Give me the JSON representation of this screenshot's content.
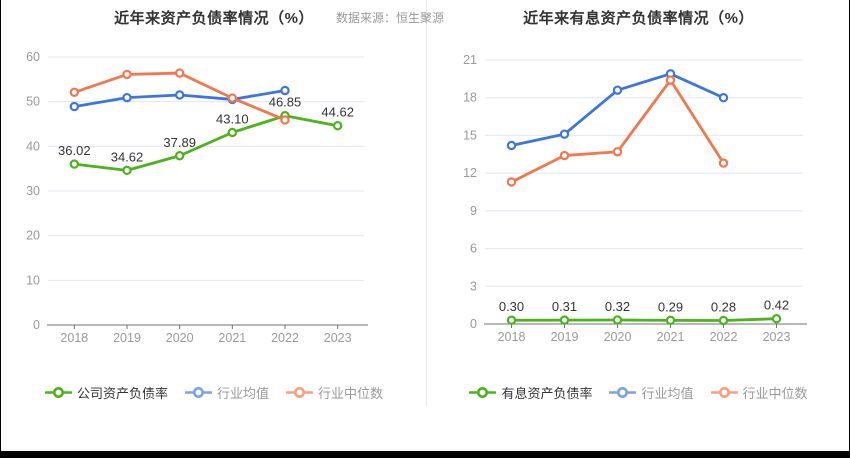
{
  "source_label": "数据来源：恒生聚源",
  "colors": {
    "green": "#4cb31b",
    "blue": "#3c76dd",
    "orange": "#f4764e",
    "legend_blue": "#7aa2e9",
    "legend_orange": "#f9a080",
    "grid": "#e1e7f2",
    "axis": "#6e7079",
    "tick_label": "#999999",
    "data_label": "#333333"
  },
  "chart_data": [
    {
      "type": "line",
      "title": "近年来资产负债率情况（%）",
      "categories": [
        "2018",
        "2019",
        "2020",
        "2021",
        "2022",
        "2023"
      ],
      "ylim": [
        0,
        60
      ],
      "y_ticks": [
        0,
        10,
        20,
        30,
        40,
        50,
        60
      ],
      "grid": true,
      "legend_position": "bottom",
      "series": [
        {
          "name": "公司资产负债率",
          "color": "#4cb31b",
          "values": [
            36.02,
            34.62,
            37.89,
            43.1,
            46.85,
            44.62
          ],
          "data_labels": [
            "36.02",
            "34.62",
            "37.89",
            "43.10",
            "46.85",
            "44.62"
          ]
        },
        {
          "name": "行业均值",
          "color": "#3c76dd",
          "values": [
            48.9,
            50.9,
            51.5,
            50.5,
            52.5,
            null
          ]
        },
        {
          "name": "行业中位数",
          "color": "#f4764e",
          "values": [
            52.1,
            56.1,
            56.4,
            50.8,
            45.9,
            null
          ]
        }
      ],
      "legend": [
        {
          "label": "公司资产负债率",
          "marker_color": "#4cb31b",
          "text_color": "#333333"
        },
        {
          "label": "行业均值",
          "marker_color": "#7aa2e9",
          "text_color": "#999999"
        },
        {
          "label": "行业中位数",
          "marker_color": "#f9a080",
          "text_color": "#999999"
        }
      ]
    },
    {
      "type": "line",
      "title": "近年来有息资产负债率情况（%）",
      "categories": [
        "2018",
        "2019",
        "2020",
        "2021",
        "2022",
        "2023"
      ],
      "ylim": [
        0,
        21
      ],
      "y_ticks": [
        0,
        3,
        6,
        9,
        12,
        15,
        18,
        21
      ],
      "grid": true,
      "legend_position": "bottom",
      "series": [
        {
          "name": "有息资产负债率",
          "color": "#4cb31b",
          "values": [
            0.3,
            0.31,
            0.32,
            0.29,
            0.28,
            0.42
          ],
          "data_labels": [
            "0.30",
            "0.31",
            "0.32",
            "0.29",
            "0.28",
            "0.42"
          ]
        },
        {
          "name": "行业均值",
          "color": "#3c76dd",
          "values": [
            14.2,
            15.1,
            18.6,
            19.9,
            18.0,
            null
          ]
        },
        {
          "name": "行业中位数",
          "color": "#f4764e",
          "values": [
            11.3,
            13.4,
            13.7,
            19.4,
            12.8,
            null
          ]
        }
      ],
      "legend": [
        {
          "label": "有息资产负债率",
          "marker_color": "#4cb31b",
          "text_color": "#333333"
        },
        {
          "label": "行业均值",
          "marker_color": "#7aa2e9",
          "text_color": "#999999"
        },
        {
          "label": "行业中位数",
          "marker_color": "#f9a080",
          "text_color": "#999999"
        }
      ]
    }
  ]
}
